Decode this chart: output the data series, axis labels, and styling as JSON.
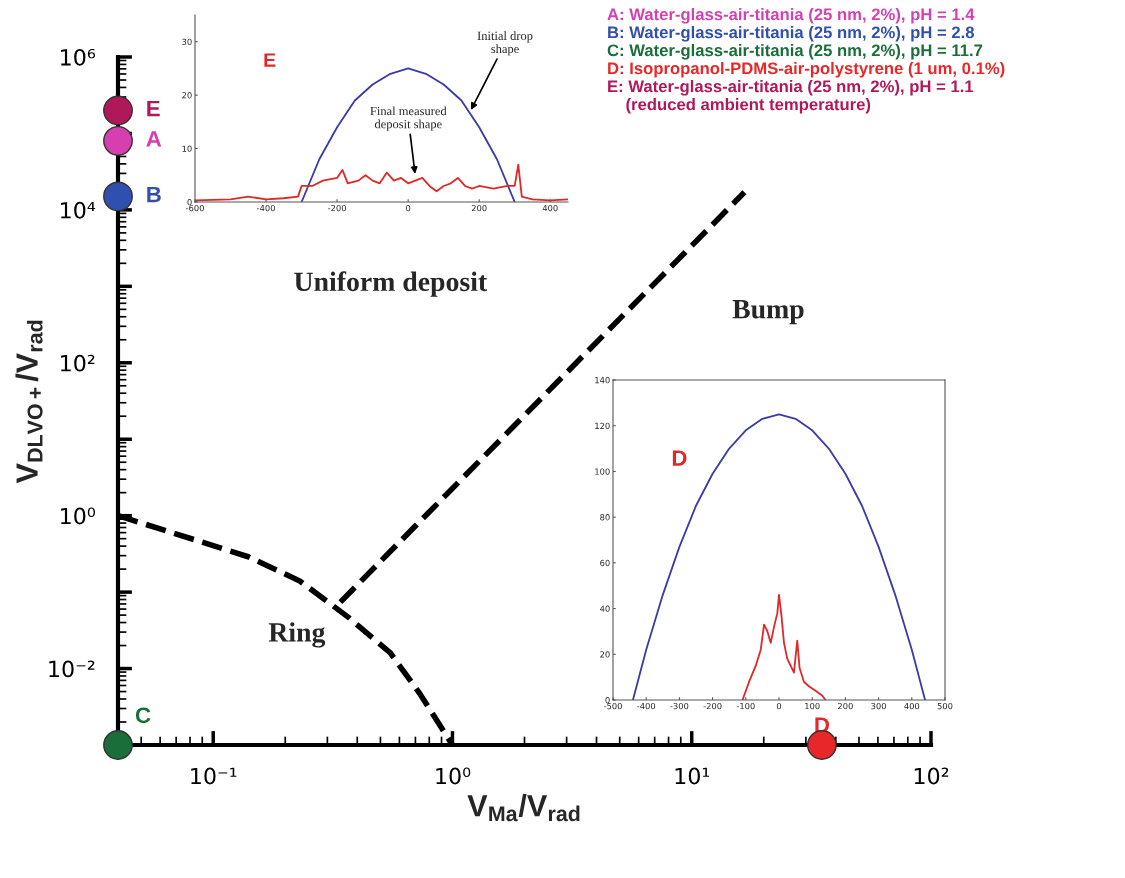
{
  "chart_data": [
    {
      "type": "scatter",
      "log": "xy",
      "xlabel": "V$_{Ma}$/V$_{rad}$",
      "ylabel": "V$_{DLVO+}$/V$_{rad}$",
      "xlim": [
        0.04,
        100
      ],
      "ylim": [
        0.001,
        1000000
      ],
      "xticks": [
        {
          "value": 0.1,
          "label": "10⁻¹"
        },
        {
          "value": 1,
          "label": "10⁰"
        },
        {
          "value": 10,
          "label": "10¹"
        },
        {
          "value": 100,
          "label": "10²"
        }
      ],
      "yticks": [
        {
          "value": 0.01,
          "label": "10⁻²"
        },
        {
          "value": 0.1,
          "label": null
        },
        {
          "value": 1,
          "label": "10⁰"
        },
        {
          "value": 10,
          "label": null
        },
        {
          "value": 100,
          "label": "10²"
        },
        {
          "value": 1000,
          "label": null
        },
        {
          "value": 10000,
          "label": "10⁴"
        },
        {
          "value": 100000,
          "label": null
        },
        {
          "value": 1000000,
          "label": "10⁶"
        }
      ],
      "grid": false,
      "series": [
        {
          "name": "A: Water-glass-air-titania (25 nm, 2%), pH = 1.4",
          "color": "#d63fb0",
          "marker": "circle",
          "x": [
            0.04
          ],
          "values": [
            80000
          ]
        },
        {
          "name": "B: Water-glass-air-titania (25 nm, 2%), pH = 2.8",
          "color": "#3050b0",
          "marker": "circle",
          "x": [
            0.04
          ],
          "values": [
            15000
          ]
        },
        {
          "name": "C: Water-glass-air-titania (25 nm, 2%), pH = 11.7",
          "color": "#1a6e3a",
          "marker": "circle",
          "x": [
            0.04
          ],
          "values": [
            0.001
          ]
        },
        {
          "name": "D: Isopropanol-PDMS-air-polystyrene (1 um, 0.1%)",
          "color": "#e82828",
          "marker": "circle",
          "x": [
            35
          ],
          "values": [
            0.001
          ]
        },
        {
          "name": "E: Water-glass-air-titania (25 nm, 2%), pH = 1.1\n    (reduced ambient temperature)",
          "color": "#b0185a",
          "marker": "circle",
          "x": [
            0.04
          ],
          "values": [
            200000
          ]
        },
        {
          "type": "line",
          "line_style": "dashed",
          "color": "#000000",
          "x": [
            0.04,
            0.088,
            0.14,
            0.23,
            0.37,
            0.55,
            0.73,
            1.0
          ],
          "values": [
            1.0,
            0.46,
            0.29,
            0.14,
            0.046,
            0.016,
            0.0047,
            0.001
          ]
        },
        {
          "type": "line",
          "line_style": "dashed",
          "color": "#000000",
          "x": [
            0.34,
            16.6
          ],
          "values": [
            0.074,
            17000
          ]
        }
      ],
      "annotations": [
        {
          "text": "A",
          "x": 0.04,
          "y": 80000
        },
        {
          "text": "B",
          "x": 0.04,
          "y": 15000
        },
        {
          "text": "C",
          "x": 0.04,
          "y": 0.001
        },
        {
          "text": "D",
          "x": 35,
          "y": 0.001
        },
        {
          "text": "E",
          "x": 0.04,
          "y": 200000
        },
        "Uniform deposit",
        "Bump",
        "Ring"
      ]
    },
    {
      "type": "line",
      "xlim": [
        -600,
        450
      ],
      "ylim": [
        0,
        35
      ],
      "xticks": [
        -600,
        -400,
        -200,
        0,
        200,
        400
      ],
      "yticks": [
        0,
        10,
        20,
        30
      ],
      "grid": false,
      "series": [
        {
          "color": "#3a3aa8",
          "x": [
            -300,
            -250,
            -200,
            -150,
            -100,
            -50,
            0,
            50,
            100,
            150,
            200,
            250,
            300
          ],
          "values": [
            0,
            8,
            14,
            19,
            22,
            24,
            25,
            24,
            22,
            19,
            14,
            8,
            0
          ]
        },
        {
          "color": "#e02828",
          "x": [
            -600,
            -500,
            -450,
            -400,
            -350,
            -310,
            -300,
            -270,
            -240,
            -200,
            -185,
            -170,
            -140,
            -120,
            -100,
            -80,
            -60,
            -40,
            -20,
            0,
            20,
            40,
            60,
            80,
            100,
            120,
            140,
            160,
            180,
            200,
            240,
            280,
            300,
            310,
            320,
            350,
            400,
            450
          ],
          "values": [
            0.3,
            0.5,
            1,
            0.5,
            0.7,
            1,
            3,
            3,
            4,
            4.5,
            6,
            3.5,
            4,
            5,
            4,
            3.5,
            5.5,
            4,
            4.5,
            3.5,
            4,
            4.5,
            3,
            2,
            3,
            3.5,
            4.5,
            3,
            2.5,
            3,
            2.5,
            3,
            3,
            7,
            1,
            0.5,
            0.3,
            0.5
          ]
        }
      ],
      "annotations": [
        "E",
        {
          "text": "Initial drop\nshape",
          "x": 175,
          "y": 17
        },
        {
          "text": "Final measured\ndeposit shape",
          "x": 20,
          "y": 5
        }
      ]
    },
    {
      "type": "line",
      "xlim": [
        -500,
        500
      ],
      "ylim": [
        0,
        140
      ],
      "xticks": [
        -500,
        -400,
        -300,
        -200,
        -100,
        0,
        100,
        200,
        300,
        400,
        500
      ],
      "yticks": [
        0,
        20,
        40,
        60,
        80,
        100,
        120,
        140
      ],
      "grid": false,
      "series": [
        {
          "color": "#3a3aa8",
          "x": [
            -440,
            -400,
            -350,
            -300,
            -250,
            -200,
            -150,
            -100,
            -50,
            0,
            50,
            100,
            150,
            200,
            250,
            300,
            350,
            400,
            440
          ],
          "values": [
            0,
            22,
            46,
            67,
            85,
            99,
            110,
            118,
            123,
            125,
            123,
            118,
            110,
            99,
            85,
            67,
            46,
            22,
            0
          ]
        },
        {
          "color": "#e02828",
          "x": [
            -110,
            -90,
            -70,
            -55,
            -45,
            -35,
            -25,
            -15,
            -5,
            0,
            8,
            15,
            25,
            35,
            45,
            55,
            62,
            75,
            90,
            110,
            130,
            140
          ],
          "values": [
            0,
            8,
            15,
            22,
            33,
            30,
            25,
            32,
            38,
            46,
            36,
            25,
            18,
            15,
            12,
            26,
            14,
            8,
            6,
            4,
            2,
            0
          ]
        }
      ],
      "annotations": [
        "D"
      ]
    }
  ]
}
